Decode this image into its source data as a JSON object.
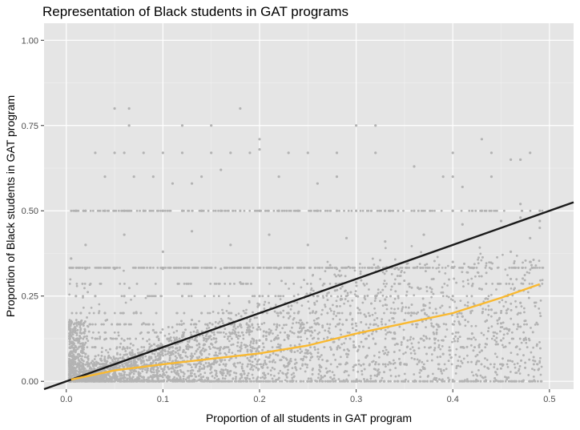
{
  "chart_data": {
    "type": "scatter",
    "title": "Representation of Black students in GAT programs",
    "xlabel": "Proportion of all students in GAT program",
    "ylabel": "Proportion of Black students in GAT program",
    "xlim": [
      -0.023,
      0.525
    ],
    "ylim": [
      -0.023,
      1.05
    ],
    "x_ticks": [
      0.0,
      0.1,
      0.2,
      0.3,
      0.4,
      0.5
    ],
    "x_tick_labels": [
      "0.0",
      "0.1",
      "0.2",
      "0.3",
      "0.4",
      "0.5"
    ],
    "y_ticks": [
      0.0,
      0.25,
      0.5,
      0.75,
      1.0
    ],
    "y_tick_labels": [
      "0.00",
      "0.25",
      "0.50",
      "0.75",
      "1.00"
    ],
    "grid": true,
    "background": "#e5e5e5",
    "point_color": "#b3b3b3",
    "reference_line": {
      "description": "y = x",
      "color": "#1a1a1a",
      "x": [
        -0.023,
        0.525
      ],
      "y": [
        -0.023,
        0.525
      ]
    },
    "smooth_line": {
      "color": "#f9b931",
      "x": [
        0.005,
        0.05,
        0.1,
        0.15,
        0.2,
        0.25,
        0.3,
        0.35,
        0.4,
        0.45,
        0.49
      ],
      "y": [
        0.005,
        0.032,
        0.05,
        0.066,
        0.082,
        0.105,
        0.14,
        0.17,
        0.2,
        0.245,
        0.285
      ]
    },
    "scatter_points": [
      [
        0.01,
        0.0
      ],
      [
        0.02,
        0.0
      ],
      [
        0.03,
        0.01
      ],
      [
        0.04,
        0.0
      ],
      [
        0.06,
        0.02
      ],
      [
        0.08,
        0.0
      ],
      [
        0.12,
        0.0
      ],
      [
        0.15,
        0.0
      ],
      [
        0.2,
        0.0
      ],
      [
        0.25,
        0.0
      ],
      [
        0.3,
        0.0
      ],
      [
        0.35,
        0.0
      ],
      [
        0.4,
        0.0
      ],
      [
        0.45,
        0.0
      ],
      [
        0.48,
        0.0
      ],
      [
        0.01,
        0.05
      ],
      [
        0.02,
        0.08
      ],
      [
        0.03,
        0.1
      ],
      [
        0.05,
        0.04
      ],
      [
        0.06,
        0.12
      ],
      [
        0.08,
        0.06
      ],
      [
        0.09,
        0.15
      ],
      [
        0.1,
        0.09
      ],
      [
        0.11,
        0.05
      ],
      [
        0.12,
        0.13
      ],
      [
        0.13,
        0.18
      ],
      [
        0.14,
        0.08
      ],
      [
        0.15,
        0.11
      ],
      [
        0.16,
        0.06
      ],
      [
        0.17,
        0.14
      ],
      [
        0.18,
        0.09
      ],
      [
        0.19,
        0.16
      ],
      [
        0.2,
        0.12
      ],
      [
        0.21,
        0.07
      ],
      [
        0.22,
        0.1
      ],
      [
        0.23,
        0.2
      ],
      [
        0.24,
        0.13
      ],
      [
        0.25,
        0.09
      ],
      [
        0.26,
        0.17
      ],
      [
        0.27,
        0.12
      ],
      [
        0.28,
        0.22
      ],
      [
        0.29,
        0.08
      ],
      [
        0.3,
        0.15
      ],
      [
        0.31,
        0.19
      ],
      [
        0.32,
        0.11
      ],
      [
        0.33,
        0.24
      ],
      [
        0.34,
        0.14
      ],
      [
        0.35,
        0.18
      ],
      [
        0.36,
        0.09
      ],
      [
        0.37,
        0.21
      ],
      [
        0.38,
        0.16
      ],
      [
        0.39,
        0.12
      ],
      [
        0.4,
        0.25
      ],
      [
        0.41,
        0.19
      ],
      [
        0.42,
        0.14
      ],
      [
        0.43,
        0.27
      ],
      [
        0.44,
        0.21
      ],
      [
        0.45,
        0.17
      ],
      [
        0.46,
        0.3
      ],
      [
        0.47,
        0.23
      ],
      [
        0.48,
        0.35
      ],
      [
        0.49,
        0.28
      ],
      [
        0.02,
        0.02
      ],
      [
        0.04,
        0.06
      ],
      [
        0.07,
        0.03
      ],
      [
        0.09,
        0.04
      ],
      [
        0.11,
        0.1
      ],
      [
        0.13,
        0.07
      ],
      [
        0.15,
        0.04
      ],
      [
        0.17,
        0.03
      ],
      [
        0.19,
        0.06
      ],
      [
        0.21,
        0.14
      ],
      [
        0.23,
        0.05
      ],
      [
        0.25,
        0.15
      ],
      [
        0.27,
        0.06
      ],
      [
        0.29,
        0.18
      ],
      [
        0.31,
        0.07
      ],
      [
        0.33,
        0.1
      ],
      [
        0.35,
        0.05
      ],
      [
        0.37,
        0.12
      ],
      [
        0.39,
        0.08
      ],
      [
        0.41,
        0.1
      ],
      [
        0.43,
        0.09
      ],
      [
        0.45,
        0.12
      ],
      [
        0.47,
        0.16
      ],
      [
        0.005,
        0.36
      ],
      [
        0.01,
        0.25
      ],
      [
        0.015,
        0.2
      ],
      [
        0.02,
        0.33
      ],
      [
        0.03,
        0.25
      ],
      [
        0.04,
        0.2
      ],
      [
        0.05,
        0.33
      ],
      [
        0.06,
        0.25
      ],
      [
        0.07,
        0.2
      ],
      [
        0.08,
        0.17
      ],
      [
        0.1,
        0.33
      ],
      [
        0.12,
        0.25
      ],
      [
        0.14,
        0.2
      ],
      [
        0.16,
        0.33
      ],
      [
        0.18,
        0.29
      ],
      [
        0.2,
        0.25
      ],
      [
        0.22,
        0.33
      ],
      [
        0.24,
        0.2
      ],
      [
        0.26,
        0.25
      ],
      [
        0.28,
        0.33
      ],
      [
        0.3,
        0.29
      ],
      [
        0.32,
        0.25
      ],
      [
        0.34,
        0.33
      ],
      [
        0.36,
        0.2
      ],
      [
        0.38,
        0.3
      ],
      [
        0.4,
        0.35
      ],
      [
        0.42,
        0.28
      ],
      [
        0.44,
        0.33
      ],
      [
        0.46,
        0.38
      ],
      [
        0.48,
        0.42
      ],
      [
        0.49,
        0.45
      ],
      [
        0.01,
        0.5
      ],
      [
        0.02,
        0.5
      ],
      [
        0.04,
        0.5
      ],
      [
        0.06,
        0.5
      ],
      [
        0.08,
        0.5
      ],
      [
        0.1,
        0.5
      ],
      [
        0.12,
        0.5
      ],
      [
        0.14,
        0.5
      ],
      [
        0.16,
        0.5
      ],
      [
        0.18,
        0.5
      ],
      [
        0.2,
        0.5
      ],
      [
        0.22,
        0.5
      ],
      [
        0.24,
        0.5
      ],
      [
        0.26,
        0.5
      ],
      [
        0.28,
        0.5
      ],
      [
        0.3,
        0.5
      ],
      [
        0.33,
        0.5
      ],
      [
        0.36,
        0.5
      ],
      [
        0.4,
        0.5
      ],
      [
        0.43,
        0.5
      ],
      [
        0.47,
        0.52
      ],
      [
        0.49,
        0.5
      ],
      [
        0.02,
        0.4
      ],
      [
        0.06,
        0.43
      ],
      [
        0.1,
        0.38
      ],
      [
        0.13,
        0.44
      ],
      [
        0.17,
        0.4
      ],
      [
        0.21,
        0.43
      ],
      [
        0.25,
        0.4
      ],
      [
        0.29,
        0.42
      ],
      [
        0.33,
        0.41
      ],
      [
        0.37,
        0.43
      ],
      [
        0.41,
        0.46
      ],
      [
        0.45,
        0.47
      ],
      [
        0.47,
        0.48
      ],
      [
        0.49,
        0.47
      ],
      [
        0.03,
        0.67
      ],
      [
        0.05,
        0.67
      ],
      [
        0.06,
        0.67
      ],
      [
        0.08,
        0.67
      ],
      [
        0.1,
        0.67
      ],
      [
        0.12,
        0.67
      ],
      [
        0.15,
        0.67
      ],
      [
        0.17,
        0.67
      ],
      [
        0.19,
        0.67
      ],
      [
        0.23,
        0.67
      ],
      [
        0.25,
        0.67
      ],
      [
        0.28,
        0.67
      ],
      [
        0.32,
        0.67
      ],
      [
        0.4,
        0.67
      ],
      [
        0.44,
        0.67
      ],
      [
        0.48,
        0.67
      ],
      [
        0.04,
        0.6
      ],
      [
        0.07,
        0.6
      ],
      [
        0.09,
        0.6
      ],
      [
        0.14,
        0.6
      ],
      [
        0.16,
        0.62
      ],
      [
        0.2,
        0.68
      ],
      [
        0.22,
        0.6
      ],
      [
        0.28,
        0.6
      ],
      [
        0.36,
        0.63
      ],
      [
        0.39,
        0.6
      ],
      [
        0.4,
        0.6
      ],
      [
        0.41,
        0.57
      ],
      [
        0.44,
        0.6
      ],
      [
        0.46,
        0.65
      ],
      [
        0.47,
        0.65
      ],
      [
        0.05,
        0.8
      ],
      [
        0.065,
        0.8
      ],
      [
        0.18,
        0.8
      ],
      [
        0.065,
        0.75
      ],
      [
        0.12,
        0.75
      ],
      [
        0.15,
        0.75
      ],
      [
        0.3,
        0.75
      ],
      [
        0.32,
        0.75
      ],
      [
        0.2,
        0.71
      ],
      [
        0.43,
        0.71
      ],
      [
        0.11,
        0.58
      ],
      [
        0.13,
        0.58
      ],
      [
        0.26,
        0.58
      ]
    ]
  }
}
